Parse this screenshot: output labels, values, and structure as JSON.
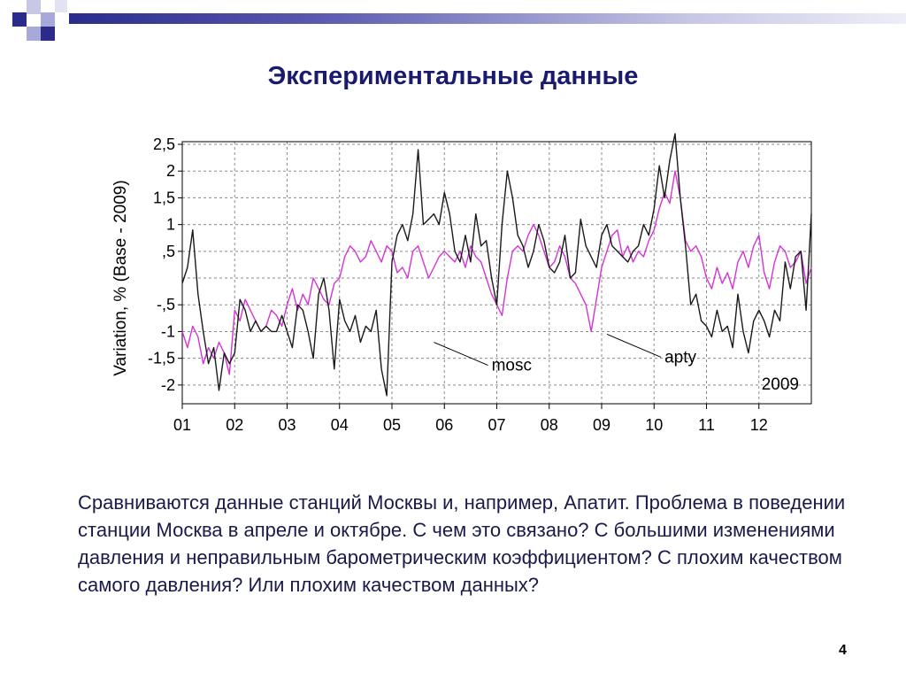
{
  "slide": {
    "title": "Экспериментальные данные",
    "body": "Сравниваются данные станций Москвы и, например,  Апатит. Проблема в поведении станции Москва в апреле и октябре. С чем это связано? С большими изменениями давления и неправильным барометрическим коэффициентом? С плохим качеством самого давления? Или плохим качеством данных?",
    "page_number": "4",
    "colors": {
      "title": "#1a1a6e",
      "decor_dark": "#2b2b8c",
      "decor_light": "#a9a9d9"
    }
  },
  "chart_data": {
    "type": "line",
    "ylabel": "Variation, %   (Base - 2009)",
    "ylim": [
      -2.35,
      2.55
    ],
    "xlim": [
      0,
      12
    ],
    "yticks": [
      {
        "v": 2.5,
        "label": "2,5"
      },
      {
        "v": 2,
        "label": "2"
      },
      {
        "v": 1.5,
        "label": "1,5"
      },
      {
        "v": 1,
        "label": "1"
      },
      {
        "v": 0.5,
        "label": ",5"
      },
      {
        "v": -0.5,
        "label": "-,5"
      },
      {
        "v": -1,
        "label": "-1"
      },
      {
        "v": -1.5,
        "label": "-1,5"
      },
      {
        "v": -2,
        "label": "-2"
      }
    ],
    "xticks": [
      "01",
      "02",
      "03",
      "04",
      "05",
      "06",
      "07",
      "08",
      "09",
      "10",
      "11",
      "12"
    ],
    "grid": true,
    "year_label": "2009",
    "colors": {
      "mosc": "#1a1a1a",
      "apty": "#d633d6"
    },
    "series": [
      {
        "name": "mosc",
        "x": [
          0,
          0.1,
          0.2,
          0.3,
          0.4,
          0.5,
          0.6,
          0.7,
          0.8,
          0.9,
          1,
          1.1,
          1.2,
          1.3,
          1.4,
          1.5,
          1.6,
          1.7,
          1.8,
          1.9,
          2,
          2.1,
          2.2,
          2.3,
          2.4,
          2.5,
          2.6,
          2.7,
          2.8,
          2.9,
          3,
          3.1,
          3.2,
          3.3,
          3.4,
          3.5,
          3.6,
          3.7,
          3.8,
          3.9,
          4,
          4.1,
          4.2,
          4.3,
          4.4,
          4.5,
          4.6,
          4.7,
          4.8,
          4.9,
          5,
          5.1,
          5.2,
          5.3,
          5.4,
          5.5,
          5.6,
          5.7,
          5.8,
          5.9,
          6,
          6.1,
          6.2,
          6.3,
          6.4,
          6.5,
          6.6,
          6.7,
          6.8,
          6.9,
          7,
          7.1,
          7.2,
          7.3,
          7.4,
          7.5,
          7.6,
          7.7,
          7.8,
          7.9,
          8,
          8.1,
          8.2,
          8.3,
          8.4,
          8.5,
          8.6,
          8.7,
          8.8,
          8.9,
          9,
          9.1,
          9.2,
          9.3,
          9.4,
          9.5,
          9.6,
          9.7,
          9.8,
          9.9,
          10,
          10.1,
          10.2,
          10.3,
          10.4,
          10.5,
          10.6,
          10.7,
          10.8,
          10.9,
          11,
          11.1,
          11.2,
          11.3,
          11.4,
          11.5,
          11.6,
          11.7,
          11.8,
          11.9,
          12
        ],
        "values": [
          -0.1,
          0.2,
          0.9,
          -0.3,
          -1.0,
          -1.6,
          -1.3,
          -2.1,
          -1.4,
          -1.6,
          -1.4,
          -0.4,
          -0.6,
          -1.0,
          -0.8,
          -1.0,
          -0.9,
          -1.0,
          -1.0,
          -0.7,
          -1.0,
          -1.3,
          -0.5,
          -0.6,
          -1.0,
          -1.5,
          -0.3,
          0.0,
          -0.6,
          -1.7,
          -0.4,
          -0.8,
          -1.0,
          -0.7,
          -1.2,
          -0.9,
          -1.0,
          -0.6,
          -1.7,
          -2.2,
          0.3,
          0.8,
          1.0,
          0.7,
          1.2,
          2.4,
          1.0,
          1.1,
          1.2,
          1.0,
          1.6,
          1.2,
          0.5,
          0.3,
          0.8,
          0.3,
          1.2,
          0.6,
          0.7,
          0.0,
          -0.5,
          1.0,
          2.0,
          1.5,
          0.8,
          0.6,
          0.2,
          0.5,
          1.0,
          0.7,
          0.2,
          0.1,
          0.3,
          0.8,
          0.0,
          0.1,
          1.1,
          0.6,
          0.4,
          0.2,
          0.8,
          1.0,
          0.6,
          0.5,
          0.4,
          0.3,
          0.5,
          0.6,
          1.0,
          0.8,
          1.3,
          2.1,
          1.5,
          2.2,
          2.7,
          1.5,
          0.6,
          -0.5,
          -0.3,
          -0.8,
          -0.9,
          -1.1,
          -0.6,
          -1.0,
          -0.9,
          -1.3,
          -0.3,
          -1.0,
          -1.4,
          -0.8,
          -0.6,
          -0.8,
          -1.1,
          -0.6,
          -0.8,
          0.3,
          -0.2,
          0.4,
          0.5,
          -0.6,
          1.2
        ]
      },
      {
        "name": "apty",
        "x": [
          0,
          0.1,
          0.2,
          0.3,
          0.4,
          0.5,
          0.6,
          0.7,
          0.8,
          0.9,
          1,
          1.1,
          1.2,
          1.3,
          1.4,
          1.5,
          1.6,
          1.7,
          1.8,
          1.9,
          2,
          2.1,
          2.2,
          2.3,
          2.4,
          2.5,
          2.6,
          2.7,
          2.8,
          2.9,
          3,
          3.1,
          3.2,
          3.3,
          3.4,
          3.5,
          3.6,
          3.7,
          3.8,
          3.9,
          4,
          4.1,
          4.2,
          4.3,
          4.4,
          4.5,
          4.6,
          4.7,
          4.8,
          4.9,
          5,
          5.1,
          5.2,
          5.3,
          5.4,
          5.5,
          5.6,
          5.7,
          5.8,
          5.9,
          6,
          6.1,
          6.2,
          6.3,
          6.4,
          6.5,
          6.6,
          6.7,
          6.8,
          6.9,
          7,
          7.1,
          7.2,
          7.3,
          7.4,
          7.5,
          7.6,
          7.7,
          7.8,
          7.9,
          8,
          8.1,
          8.2,
          8.3,
          8.4,
          8.5,
          8.6,
          8.7,
          8.8,
          8.9,
          9,
          9.1,
          9.2,
          9.3,
          9.4,
          9.5,
          9.6,
          9.7,
          9.8,
          9.9,
          10,
          10.1,
          10.2,
          10.3,
          10.4,
          10.5,
          10.6,
          10.7,
          10.8,
          10.9,
          11,
          11.1,
          11.2,
          11.3,
          11.4,
          11.5,
          11.6,
          11.7,
          11.8,
          11.9,
          12
        ],
        "values": [
          -1.0,
          -1.3,
          -0.9,
          -1.1,
          -1.6,
          -1.3,
          -1.5,
          -1.2,
          -1.4,
          -1.8,
          -0.6,
          -0.8,
          -0.4,
          -0.6,
          -0.8,
          -1.0,
          -0.9,
          -0.6,
          -0.7,
          -0.9,
          -0.5,
          -0.2,
          -0.6,
          -0.3,
          -0.5,
          0.0,
          -0.2,
          -0.4,
          -0.5,
          -0.1,
          0.0,
          0.4,
          0.6,
          0.5,
          0.3,
          0.4,
          0.7,
          0.5,
          0.3,
          0.6,
          0.5,
          0.1,
          0.2,
          0.0,
          0.5,
          0.6,
          0.3,
          0.0,
          0.2,
          0.4,
          0.5,
          0.4,
          0.3,
          0.5,
          0.2,
          0.6,
          0.4,
          0.3,
          0.0,
          -0.3,
          -0.5,
          -0.7,
          0.0,
          0.5,
          0.6,
          0.5,
          0.8,
          1.0,
          0.8,
          0.5,
          0.2,
          0.3,
          0.6,
          0.4,
          0.0,
          -0.1,
          -0.3,
          -0.5,
          -1.0,
          -0.4,
          0.2,
          0.5,
          0.8,
          0.9,
          0.4,
          0.6,
          0.3,
          0.5,
          0.4,
          0.7,
          0.9,
          1.3,
          1.6,
          1.4,
          2.0,
          1.5,
          0.7,
          0.5,
          0.6,
          0.4,
          0.0,
          -0.2,
          0.2,
          -0.1,
          0.1,
          -0.2,
          0.3,
          0.5,
          0.2,
          0.6,
          0.8,
          0.1,
          -0.2,
          0.3,
          0.6,
          0.5,
          0.2,
          0.3,
          0.5,
          -0.1,
          0.2
        ]
      }
    ],
    "annotations": [
      {
        "text": "mosc",
        "x": 4.95,
        "y": -1.2
      },
      {
        "text": "apty",
        "x": 8.25,
        "y": -1.05
      }
    ]
  }
}
